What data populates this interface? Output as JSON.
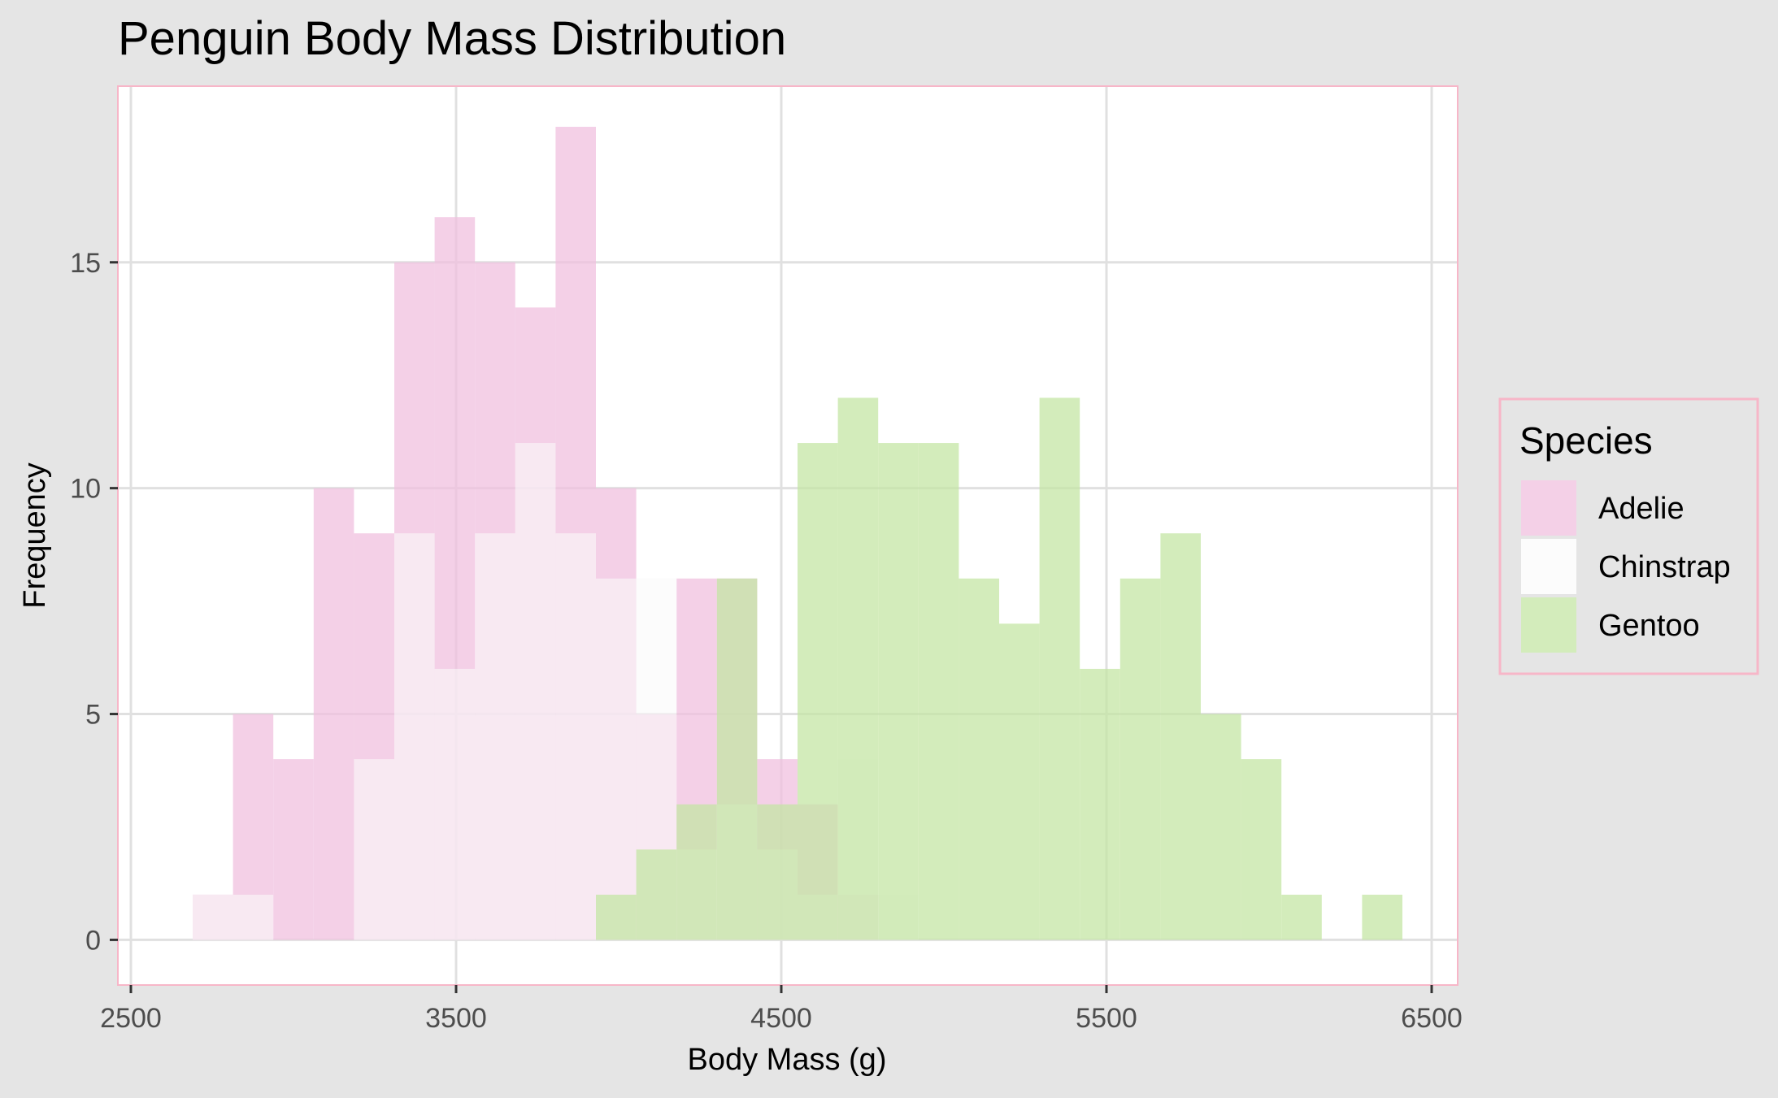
{
  "chart_data": {
    "type": "histogram",
    "title": "Penguin Body Mass Distribution",
    "xlabel": "Body Mass (g)",
    "ylabel": "Frequency",
    "xlim": [
      2500,
      6500
    ],
    "ylim": [
      0,
      18
    ],
    "x_ticks": [
      2500,
      3500,
      4500,
      5500,
      6500
    ],
    "y_ticks": [
      0,
      5,
      10,
      15
    ],
    "bin_width": 124.1,
    "grid": true,
    "legend": {
      "title": "Species",
      "position": "right"
    },
    "series": [
      {
        "name": "Adelie",
        "color": "#f0c0df",
        "opacity": 0.75,
        "bins": [
          {
            "x0": 2690,
            "x1": 2814,
            "count": 1
          },
          {
            "x0": 2814,
            "x1": 2938,
            "count": 5
          },
          {
            "x0": 2938,
            "x1": 3062,
            "count": 4
          },
          {
            "x0": 3062,
            "x1": 3186,
            "count": 10
          },
          {
            "x0": 3186,
            "x1": 3310,
            "count": 9
          },
          {
            "x0": 3310,
            "x1": 3434,
            "count": 15
          },
          {
            "x0": 3434,
            "x1": 3558,
            "count": 16
          },
          {
            "x0": 3558,
            "x1": 3682,
            "count": 15
          },
          {
            "x0": 3682,
            "x1": 3806,
            "count": 14
          },
          {
            "x0": 3806,
            "x1": 3930,
            "count": 18
          },
          {
            "x0": 3930,
            "x1": 4054,
            "count": 10
          },
          {
            "x0": 4054,
            "x1": 4178,
            "count": 5
          },
          {
            "x0": 4178,
            "x1": 4302,
            "count": 8
          },
          {
            "x0": 4302,
            "x1": 4426,
            "count": 8
          },
          {
            "x0": 4426,
            "x1": 4550,
            "count": 4
          },
          {
            "x0": 4550,
            "x1": 4674,
            "count": 3
          },
          {
            "x0": 4674,
            "x1": 4798,
            "count": 1
          }
        ]
      },
      {
        "name": "Chinstrap",
        "color": "#fafafa",
        "opacity": 0.6,
        "bins": [
          {
            "x0": 2690,
            "x1": 2814,
            "count": 1
          },
          {
            "x0": 2814,
            "x1": 2938,
            "count": 1
          },
          {
            "x0": 3186,
            "x1": 3310,
            "count": 4
          },
          {
            "x0": 3310,
            "x1": 3434,
            "count": 9
          },
          {
            "x0": 3434,
            "x1": 3558,
            "count": 6
          },
          {
            "x0": 3558,
            "x1": 3682,
            "count": 9
          },
          {
            "x0": 3682,
            "x1": 3806,
            "count": 11
          },
          {
            "x0": 3806,
            "x1": 3930,
            "count": 9
          },
          {
            "x0": 3930,
            "x1": 4054,
            "count": 8
          },
          {
            "x0": 4054,
            "x1": 4178,
            "count": 8
          },
          {
            "x0": 4178,
            "x1": 4302,
            "count": 2
          },
          {
            "x0": 4302,
            "x1": 4426,
            "count": 3
          },
          {
            "x0": 4426,
            "x1": 4550,
            "count": 2
          },
          {
            "x0": 4550,
            "x1": 4674,
            "count": 1
          },
          {
            "x0": 4674,
            "x1": 4798,
            "count": 4
          },
          {
            "x0": 4798,
            "x1": 4922,
            "count": 1
          }
        ]
      },
      {
        "name": "Gentoo",
        "color": "#c4e6a4",
        "opacity": 0.75,
        "bins": [
          {
            "x0": 3930,
            "x1": 4054,
            "count": 1
          },
          {
            "x0": 4054,
            "x1": 4178,
            "count": 2
          },
          {
            "x0": 4178,
            "x1": 4302,
            "count": 3
          },
          {
            "x0": 4302,
            "x1": 4426,
            "count": 8
          },
          {
            "x0": 4426,
            "x1": 4550,
            "count": 3
          },
          {
            "x0": 4550,
            "x1": 4674,
            "count": 11
          },
          {
            "x0": 4674,
            "x1": 4798,
            "count": 12
          },
          {
            "x0": 4798,
            "x1": 4922,
            "count": 11
          },
          {
            "x0": 4922,
            "x1": 5046,
            "count": 11
          },
          {
            "x0": 5046,
            "x1": 5170,
            "count": 8
          },
          {
            "x0": 5170,
            "x1": 5294,
            "count": 7
          },
          {
            "x0": 5294,
            "x1": 5418,
            "count": 12
          },
          {
            "x0": 5418,
            "x1": 5542,
            "count": 6
          },
          {
            "x0": 5542,
            "x1": 5666,
            "count": 8
          },
          {
            "x0": 5666,
            "x1": 5790,
            "count": 9
          },
          {
            "x0": 5790,
            "x1": 5914,
            "count": 5
          },
          {
            "x0": 5914,
            "x1": 6038,
            "count": 4
          },
          {
            "x0": 6038,
            "x1": 6162,
            "count": 1
          },
          {
            "x0": 6286,
            "x1": 6410,
            "count": 1
          }
        ]
      }
    ]
  },
  "colors": {
    "page_background": "#e5e5e5",
    "panel_background": "#ffffff",
    "panel_border": "#f7b6c8",
    "gridline": "#e0e0e0"
  }
}
